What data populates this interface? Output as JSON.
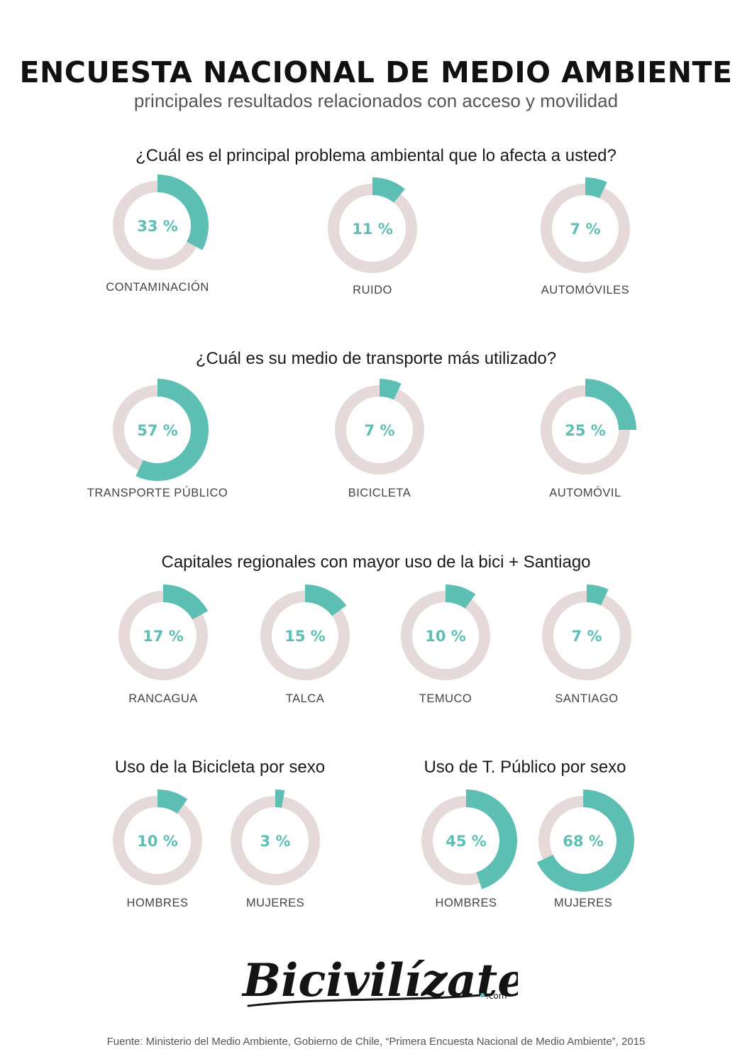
{
  "header": {
    "title": "ENCUESTA NACIONAL DE MEDIO AMBIENTE",
    "subtitle": "principales resultados relacionados con acceso y movilidad"
  },
  "sections": {
    "s1": "¿Cuál es el principal problema ambiental que lo afecta a usted?",
    "s2": "¿Cuál es su medio de transporte más utilizado?",
    "s3": "Capitales regionales con mayor uso de la bici + Santiago",
    "s4a": "Uso de la Bicicleta por sexo",
    "s4b": "Uso de  T. Público por sexo"
  },
  "colors": {
    "accent": "#5dbfb4",
    "track": "#e6d9d9",
    "text": "#1a1a1a"
  },
  "chart_data": [
    {
      "type": "pie",
      "title": "¿Cuál es el principal problema ambiental que lo afecta a usted?",
      "slices": [
        {
          "label": "CONTAMINACIÓN",
          "value": 33,
          "value_label": "33 %"
        },
        {
          "label": "RUIDO",
          "value": 11,
          "value_label": "11 %"
        },
        {
          "label": "AUTOMÓVILES",
          "value": 7,
          "value_label": "7 %"
        }
      ]
    },
    {
      "type": "pie",
      "title": "¿Cuál es su medio de transporte más utilizado?",
      "slices": [
        {
          "label": "TRANSPORTE PÚBLICO",
          "value": 57,
          "value_label": "57 %"
        },
        {
          "label": "BICICLETA",
          "value": 7,
          "value_label": "7 %"
        },
        {
          "label": "AUTOMÓVIL",
          "value": 25,
          "value_label": "25 %"
        }
      ]
    },
    {
      "type": "pie",
      "title": "Capitales regionales con mayor uso de la bici + Santiago",
      "slices": [
        {
          "label": "RANCAGUA",
          "value": 17,
          "value_label": "17 %"
        },
        {
          "label": "TALCA",
          "value": 15,
          "value_label": "15 %"
        },
        {
          "label": "TEMUCO",
          "value": 10,
          "value_label": "10 %"
        },
        {
          "label": "SANTIAGO",
          "value": 7,
          "value_label": "7 %"
        }
      ]
    },
    {
      "type": "pie",
      "title": "Uso de la Bicicleta por sexo",
      "slices": [
        {
          "label": "HOMBRES",
          "value": 10,
          "value_label": "10 %"
        },
        {
          "label": "MUJERES",
          "value": 3,
          "value_label": "3 %"
        }
      ]
    },
    {
      "type": "pie",
      "title": "Uso de  T. Público por sexo",
      "slices": [
        {
          "label": "HOMBRES",
          "value": 45,
          "value_label": "45 %"
        },
        {
          "label": "MUJERES",
          "value": 68,
          "value_label": "68 %"
        }
      ]
    }
  ],
  "brand": {
    "name": "Bicivilízate",
    "suffix": ".com"
  },
  "footer": {
    "source": "Fuente: Ministerio del Medio Ambiente, Gobierno de Chile, “Primera Encuesta Nacional de Medio Ambiente”, 2015"
  }
}
